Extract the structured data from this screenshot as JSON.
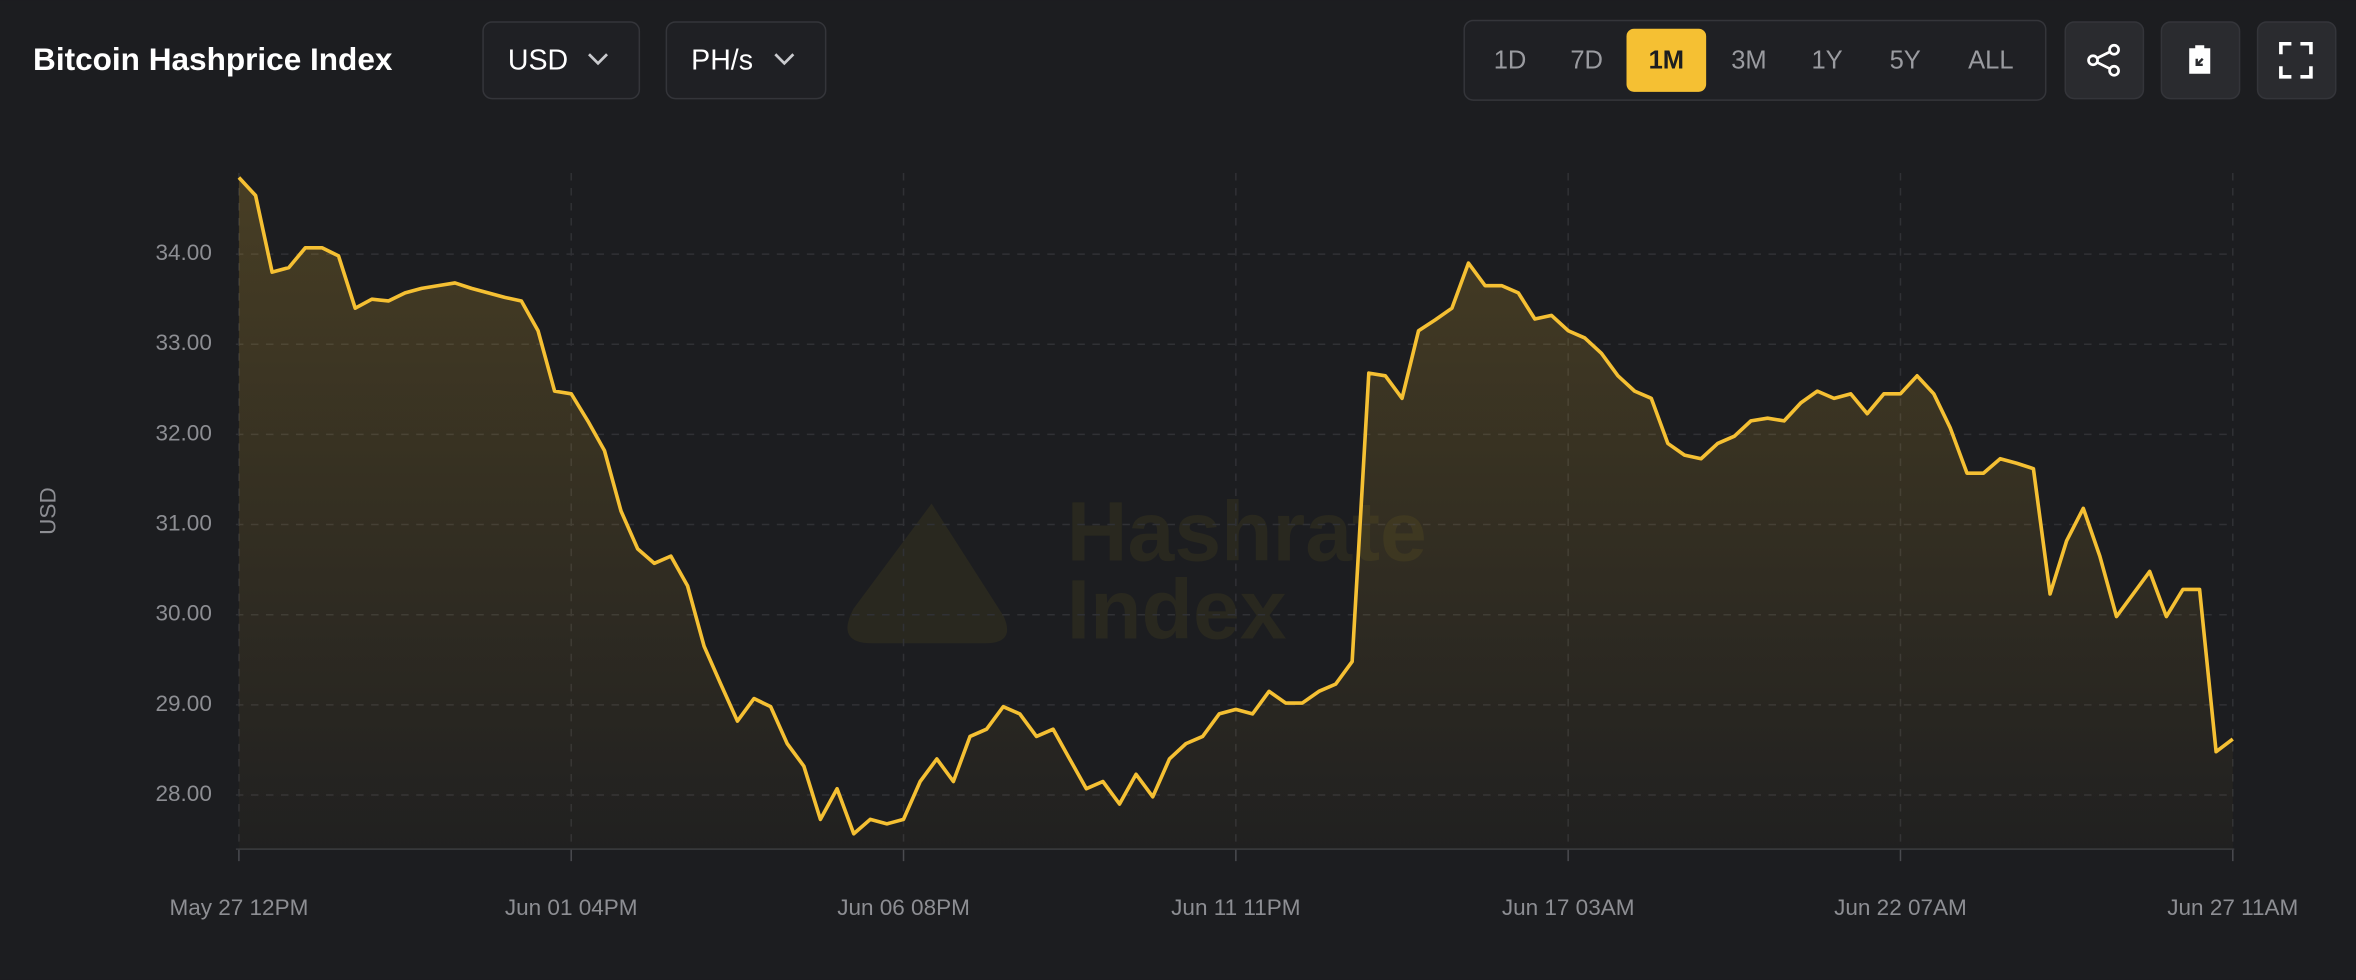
{
  "header": {
    "title": "Bitcoin Hashprice Index",
    "currency": "USD",
    "unit": "PH/s",
    "ranges": [
      "1D",
      "7D",
      "1M",
      "3M",
      "1Y",
      "5Y",
      "ALL"
    ],
    "selected": "1M"
  },
  "watermark": [
    "Hashrate",
    "Index"
  ],
  "chart_data": {
    "type": "area",
    "ylabel": "USD",
    "color": "#f5c033",
    "grid": true,
    "categories": [
      "May 27 12PM",
      null,
      null,
      null,
      null,
      null,
      null,
      null,
      null,
      null,
      null,
      null,
      null,
      null,
      null,
      null,
      null,
      null,
      null,
      null,
      "Jun 01 04PM",
      null,
      null,
      null,
      null,
      null,
      null,
      null,
      null,
      null,
      null,
      null,
      null,
      null,
      null,
      null,
      null,
      null,
      null,
      null,
      "Jun 06 08PM",
      null,
      null,
      null,
      null,
      null,
      null,
      null,
      null,
      null,
      null,
      null,
      null,
      null,
      null,
      null,
      null,
      null,
      null,
      null,
      "Jun 11 11PM",
      null,
      null,
      null,
      null,
      null,
      null,
      null,
      null,
      null,
      null,
      null,
      null,
      null,
      null,
      null,
      null,
      null,
      null,
      null,
      "Jun 17 03AM",
      null,
      null,
      null,
      null,
      null,
      null,
      null,
      null,
      null,
      null,
      null,
      null,
      null,
      null,
      null,
      null,
      null,
      null,
      null,
      "Jun 22 07AM",
      null,
      null,
      null,
      null,
      null,
      null,
      null,
      null,
      null,
      null,
      null,
      null,
      null,
      null,
      null,
      null,
      null,
      null,
      null,
      "Jun 27 11AM"
    ],
    "values": [
      34.85,
      34.65,
      33.8,
      33.85,
      34.07,
      34.07,
      33.98,
      33.4,
      33.5,
      33.48,
      33.57,
      33.62,
      33.65,
      33.68,
      33.62,
      33.57,
      33.52,
      33.48,
      33.15,
      32.48,
      32.45,
      32.15,
      31.82,
      31.15,
      30.73,
      30.57,
      30.65,
      30.32,
      29.65,
      29.23,
      28.82,
      29.07,
      28.98,
      28.57,
      28.32,
      27.73,
      28.07,
      27.57,
      27.73,
      27.68,
      27.73,
      28.15,
      28.4,
      28.15,
      28.65,
      28.73,
      28.98,
      28.9,
      28.65,
      28.73,
      28.4,
      28.07,
      28.15,
      27.9,
      28.23,
      27.98,
      28.4,
      28.57,
      28.65,
      28.9,
      28.95,
      28.9,
      29.15,
      29.02,
      29.02,
      29.15,
      29.23,
      29.48,
      32.68,
      32.65,
      32.4,
      33.15,
      33.27,
      33.4,
      33.9,
      33.65,
      33.65,
      33.57,
      33.28,
      33.32,
      33.15,
      33.07,
      32.9,
      32.65,
      32.48,
      32.4,
      31.9,
      31.77,
      31.73,
      31.9,
      31.98,
      32.15,
      32.18,
      32.15,
      32.35,
      32.48,
      32.4,
      32.45,
      32.23,
      32.45,
      32.45,
      32.65,
      32.45,
      32.07,
      31.57,
      31.57,
      31.73,
      31.68,
      31.62,
      30.23,
      30.82,
      31.18,
      30.65,
      29.98,
      30.23,
      30.48,
      29.98,
      30.28,
      30.28,
      28.48,
      28.62
    ],
    "ylim": [
      27.4,
      34.9
    ],
    "yticks": [
      {
        "value": 28,
        "label": "28.00"
      },
      {
        "value": 29,
        "label": "29.00"
      },
      {
        "value": 30,
        "label": "30.00"
      },
      {
        "value": 31,
        "label": "31.00"
      },
      {
        "value": 32,
        "label": "32.00"
      },
      {
        "value": 33,
        "label": "33.00"
      },
      {
        "value": 34,
        "label": "34.00"
      }
    ]
  }
}
